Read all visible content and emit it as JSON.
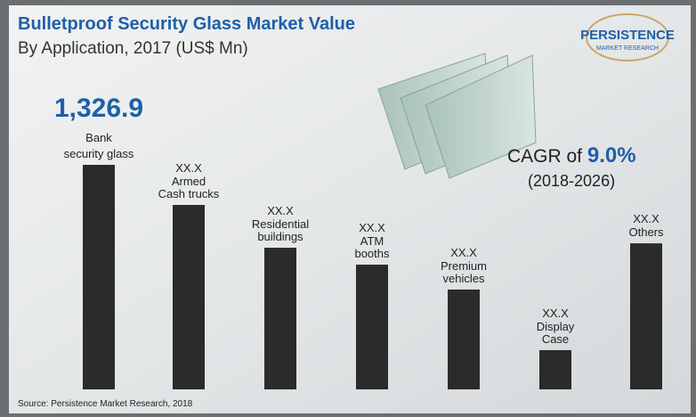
{
  "chart_data": {
    "type": "bar",
    "title": "Bulletproof Security Glass Market Value",
    "subtitle": "By Application, 2017 (US$ Mn)",
    "categories": [
      "Bank\nsecurity glass",
      "Armed\nCash trucks",
      "Residential\nbuildings",
      "ATM\nbooths",
      "Premium\nvehicles",
      "Display\nCase",
      "Others"
    ],
    "values": [
      1326.9,
      1090,
      837,
      737,
      590,
      232,
      863
    ],
    "value_labels": [
      "1,326.9",
      "XX.X",
      "XX.X",
      "XX.X",
      "XX.X",
      "XX.X",
      "XX.X"
    ],
    "color": "#2b2b2b",
    "cagr_label": "CAGR of",
    "cagr_value": "9.0%",
    "cagr_period": "(2018-2026)",
    "logo": {
      "name": "PERSISTENCE",
      "sub": "MARKET RESEARCH"
    },
    "source": "Source: Persistence Market Research, 2018"
  }
}
